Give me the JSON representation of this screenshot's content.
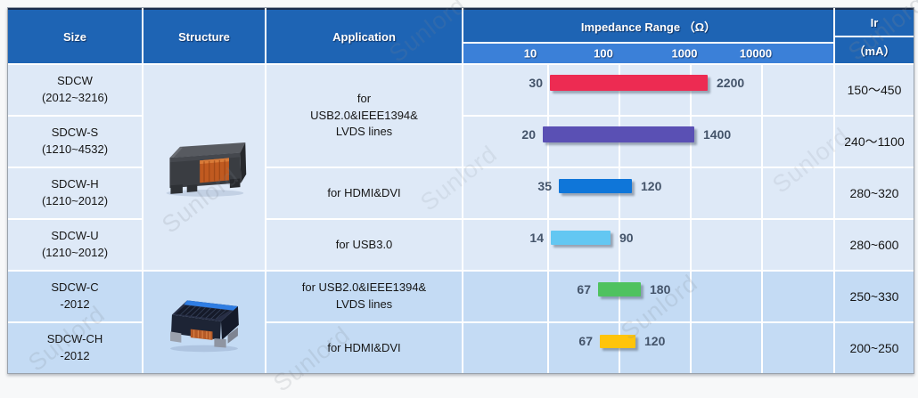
{
  "header": {
    "size": "Size",
    "structure": "Structure",
    "application": "Application",
    "impedance": "Impedance Range （Ω）",
    "ir": "Ir",
    "ir_unit": "（mA）",
    "axis_ticks": [
      "10",
      "100",
      "1000",
      "10000"
    ]
  },
  "rows": [
    {
      "size1": "SDCW",
      "size2": "(2012~3216)",
      "ir": "150～450"
    },
    {
      "size1": "SDCW-S",
      "size2": "(1210~4532)",
      "ir": "240～1100"
    },
    {
      "size1": "SDCW-H",
      "size2": "(1210~2012)",
      "ir": "280~320"
    },
    {
      "size1": "SDCW-U",
      "size2": "(1210~2012)",
      "ir": "280~600"
    },
    {
      "size1": "SDCW-C",
      "size2": "-2012",
      "ir": "250~330"
    },
    {
      "size1": "SDCW-CH",
      "size2": "-2012",
      "ir": "200~250"
    }
  ],
  "applications": {
    "a1_line1": "for",
    "a1_line2": "USB2.0&IEEE1394&",
    "a1_line3": "LVDS lines",
    "a2": "for HDMI&DVI",
    "a3": "for USB3.0",
    "a4_line1": "for USB2.0&IEEE1394&",
    "a4_line2": "LVDS lines",
    "a5": "for HDMI&DVI"
  },
  "bars": [
    {
      "min": "30",
      "max": "2200",
      "color": "#ED2B52",
      "left": 97,
      "width": 177,
      "height": 18
    },
    {
      "min": "20",
      "max": "1400",
      "color": "#5A50B4",
      "left": 89,
      "width": 170,
      "height": 18
    },
    {
      "min": "35",
      "max": "120",
      "color": "#0F76D9",
      "left": 107,
      "width": 82,
      "height": 16
    },
    {
      "min": "14",
      "max": "90",
      "color": "#63C7F2",
      "left": 98,
      "width": 67,
      "height": 16
    },
    {
      "min": "67",
      "max": "180",
      "color": "#4FC25F",
      "left": 151,
      "width": 48,
      "height": 16
    },
    {
      "min": "67",
      "max": "120",
      "color": "#FFC40A",
      "left": 153,
      "width": 40,
      "height": 15
    }
  ],
  "watermark": "Sunlord",
  "colors": {
    "header_bg": "#1E64B4",
    "subheader_bg": "#3B80D8",
    "row_light": "#DEE9F7",
    "row_dark": "#C4DBF4",
    "chart_label": "#44546A"
  },
  "chart_data": {
    "type": "bar",
    "subtype": "horizontal-range-bars",
    "title": "Impedance Range （Ω）",
    "x_scale": "log",
    "x_ticks": [
      10,
      100,
      1000,
      10000
    ],
    "grid": true,
    "legend": false,
    "categories": [
      "SDCW (2012~3216)",
      "SDCW-S (1210~4532)",
      "SDCW-H (1210~2012)",
      "SDCW-U (1210~2012)",
      "SDCW-C -2012",
      "SDCW-CH -2012"
    ],
    "series": [
      {
        "name": "Impedance Range (Ω)",
        "ranges": [
          [
            30,
            2200
          ],
          [
            20,
            1400
          ],
          [
            35,
            120
          ],
          [
            14,
            90
          ],
          [
            67,
            180
          ],
          [
            67,
            120
          ]
        ]
      }
    ],
    "bar_colors": [
      "#ED2B52",
      "#5A50B4",
      "#0F76D9",
      "#63C7F2",
      "#4FC25F",
      "#FFC40A"
    ],
    "ir_ranges_mA": [
      "150～450",
      "240～1100",
      "280~320",
      "280~600",
      "250~330",
      "200~250"
    ]
  }
}
